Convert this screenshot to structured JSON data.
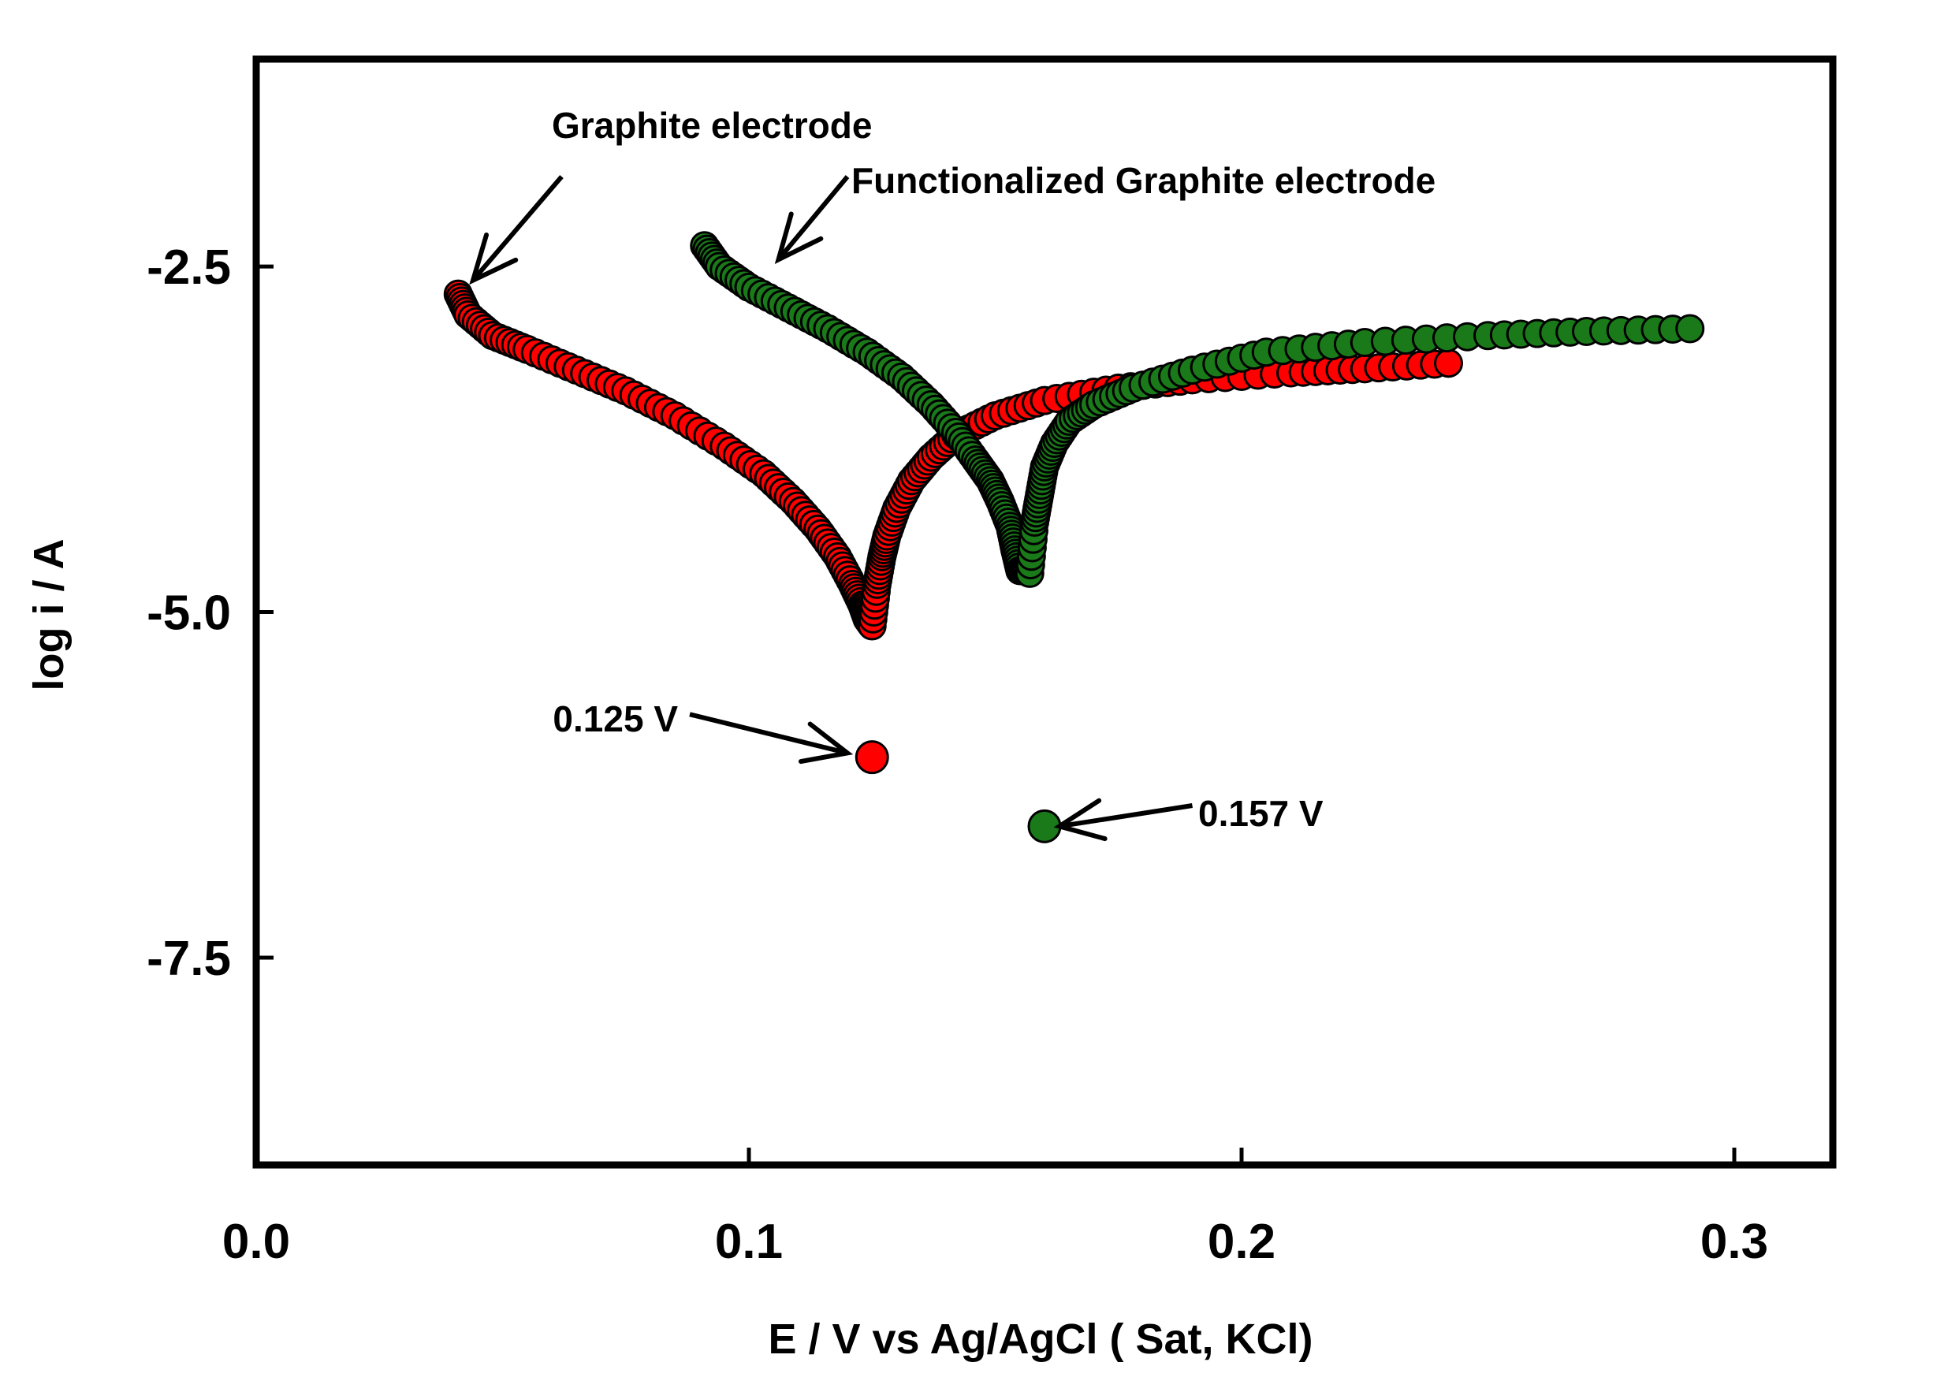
{
  "chart_data": {
    "type": "scatter",
    "xlabel": "E / V vs Ag/AgCl ( Sat, KCl)",
    "ylabel": "log i / A",
    "xlim": [
      0.0,
      0.32
    ],
    "ylim": [
      -9.0,
      -1.0
    ],
    "x_ticks": [
      "0.0",
      "0.1",
      "0.2",
      "0.3"
    ],
    "x_tick_values": [
      0.0,
      0.1,
      0.2,
      0.3
    ],
    "y_ticks": [
      "-2.5",
      "-5.0",
      "-7.5"
    ],
    "y_tick_values": [
      -2.5,
      -5.0,
      -7.5
    ],
    "grid": false,
    "series": [
      {
        "color": "#ff0000",
        "cathodic_start": [
          0.041,
          -2.7
        ],
        "corrosion_potential": 0.125,
        "min_logi": -5.1,
        "anodic_end": [
          0.242,
          -3.2
        ],
        "x": [
          0.041,
          0.043,
          0.048,
          0.055,
          0.065,
          0.075,
          0.085,
          0.095,
          0.103,
          0.109,
          0.114,
          0.118,
          0.121,
          0.123,
          0.124,
          0.125,
          0.126,
          0.127,
          0.128,
          0.13,
          0.133,
          0.137,
          0.142,
          0.15,
          0.16,
          0.175,
          0.19,
          0.21,
          0.225,
          0.242
        ],
        "y": [
          -2.7,
          -2.85,
          -3.0,
          -3.1,
          -3.25,
          -3.4,
          -3.58,
          -3.8,
          -4.0,
          -4.2,
          -4.4,
          -4.6,
          -4.8,
          -4.95,
          -5.05,
          -5.1,
          -4.8,
          -4.6,
          -4.45,
          -4.25,
          -4.05,
          -3.88,
          -3.72,
          -3.58,
          -3.47,
          -3.38,
          -3.32,
          -3.27,
          -3.24,
          -3.2
        ]
      },
      {
        "color": "#1a7a1a",
        "cathodic_start": [
          0.091,
          -2.35
        ],
        "corrosion_potential": 0.157,
        "min_logi": -4.7,
        "anodic_end": [
          0.291,
          -2.95
        ],
        "x": [
          0.091,
          0.094,
          0.1,
          0.108,
          0.116,
          0.124,
          0.131,
          0.137,
          0.142,
          0.146,
          0.149,
          0.151,
          0.153,
          0.154,
          0.155,
          0.156,
          0.157,
          0.158,
          0.159,
          0.16,
          0.162,
          0.165,
          0.17,
          0.178,
          0.19,
          0.205,
          0.225,
          0.25,
          0.27,
          0.291
        ],
        "y": [
          -2.35,
          -2.5,
          -2.65,
          -2.8,
          -2.95,
          -3.12,
          -3.3,
          -3.5,
          -3.7,
          -3.9,
          -4.05,
          -4.2,
          -4.38,
          -4.55,
          -4.7,
          -4.7,
          -4.72,
          -4.35,
          -4.15,
          -3.95,
          -3.78,
          -3.62,
          -3.5,
          -3.38,
          -3.25,
          -3.12,
          -3.05,
          -3.0,
          -2.97,
          -2.95
        ]
      }
    ],
    "isolated_points": [
      {
        "color": "#ff0000",
        "x": 0.125,
        "y": -6.05
      },
      {
        "color": "#1a7a1a",
        "x": 0.16,
        "y": -6.55
      }
    ],
    "annotations": [
      {
        "text": "Graphite electrode",
        "arrow_from": [
          0.062,
          -1.85
        ],
        "arrow_to": [
          0.044,
          -2.6
        ]
      },
      {
        "text": "Functionalized Graphite electrode",
        "arrow_from": [
          0.12,
          -1.85
        ],
        "arrow_to": [
          0.106,
          -2.45
        ]
      },
      {
        "text": "0.125 V",
        "arrow_from": [
          0.088,
          -5.74
        ],
        "arrow_to": [
          0.12,
          -6.02
        ]
      },
      {
        "text": "0.157 V",
        "arrow_from": [
          0.19,
          -6.4
        ],
        "arrow_to": [
          0.163,
          -6.55
        ]
      }
    ]
  }
}
